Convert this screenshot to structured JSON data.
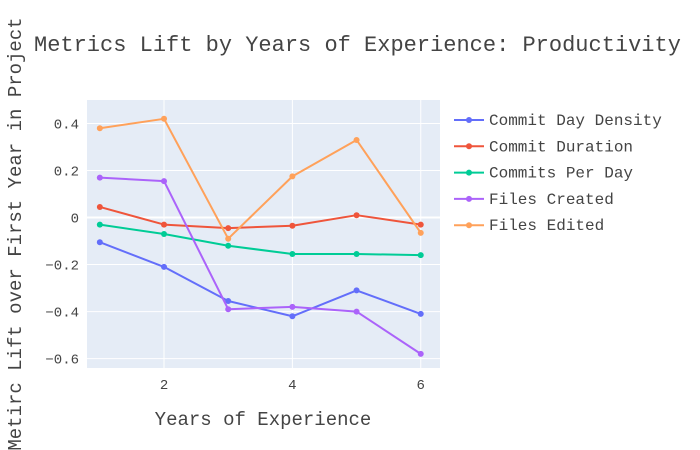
{
  "chart_data": {
    "type": "line",
    "title": "Metrics Lift by Years of Experience: Productivity",
    "xlabel": "Years of Experience",
    "ylabel": "Metirc Lift over First Year in Project",
    "x": [
      1,
      2,
      3,
      4,
      5,
      6
    ],
    "xlim": [
      0.8,
      6.3
    ],
    "ylim": [
      -0.64,
      0.5
    ],
    "x_ticks": [
      2,
      4,
      6
    ],
    "y_ticks": [
      0.4,
      0.2,
      0,
      -0.2,
      -0.4,
      -0.6
    ],
    "y_tick_labels": [
      "0.4",
      "0.2",
      "0",
      "−0.2",
      "−0.4",
      "−0.6"
    ],
    "grid": true,
    "legend_position": "right",
    "series": [
      {
        "name": "Commit Day Density",
        "color": "#636efa",
        "values": [
          -0.105,
          -0.21,
          -0.355,
          -0.42,
          -0.31,
          -0.41
        ]
      },
      {
        "name": "Commit Duration",
        "color": "#EF553B",
        "values": [
          0.045,
          -0.03,
          -0.045,
          -0.035,
          0.01,
          -0.03
        ]
      },
      {
        "name": "Commits Per Day",
        "color": "#00cc96",
        "values": [
          -0.03,
          -0.07,
          -0.12,
          -0.155,
          -0.155,
          -0.16
        ]
      },
      {
        "name": "Files Created",
        "color": "#ab63fa",
        "values": [
          0.17,
          0.155,
          -0.39,
          -0.38,
          -0.4,
          -0.58
        ]
      },
      {
        "name": "Files Edited",
        "color": "#FFA15A",
        "values": [
          0.38,
          0.42,
          -0.09,
          0.175,
          0.33,
          -0.065
        ]
      }
    ]
  }
}
